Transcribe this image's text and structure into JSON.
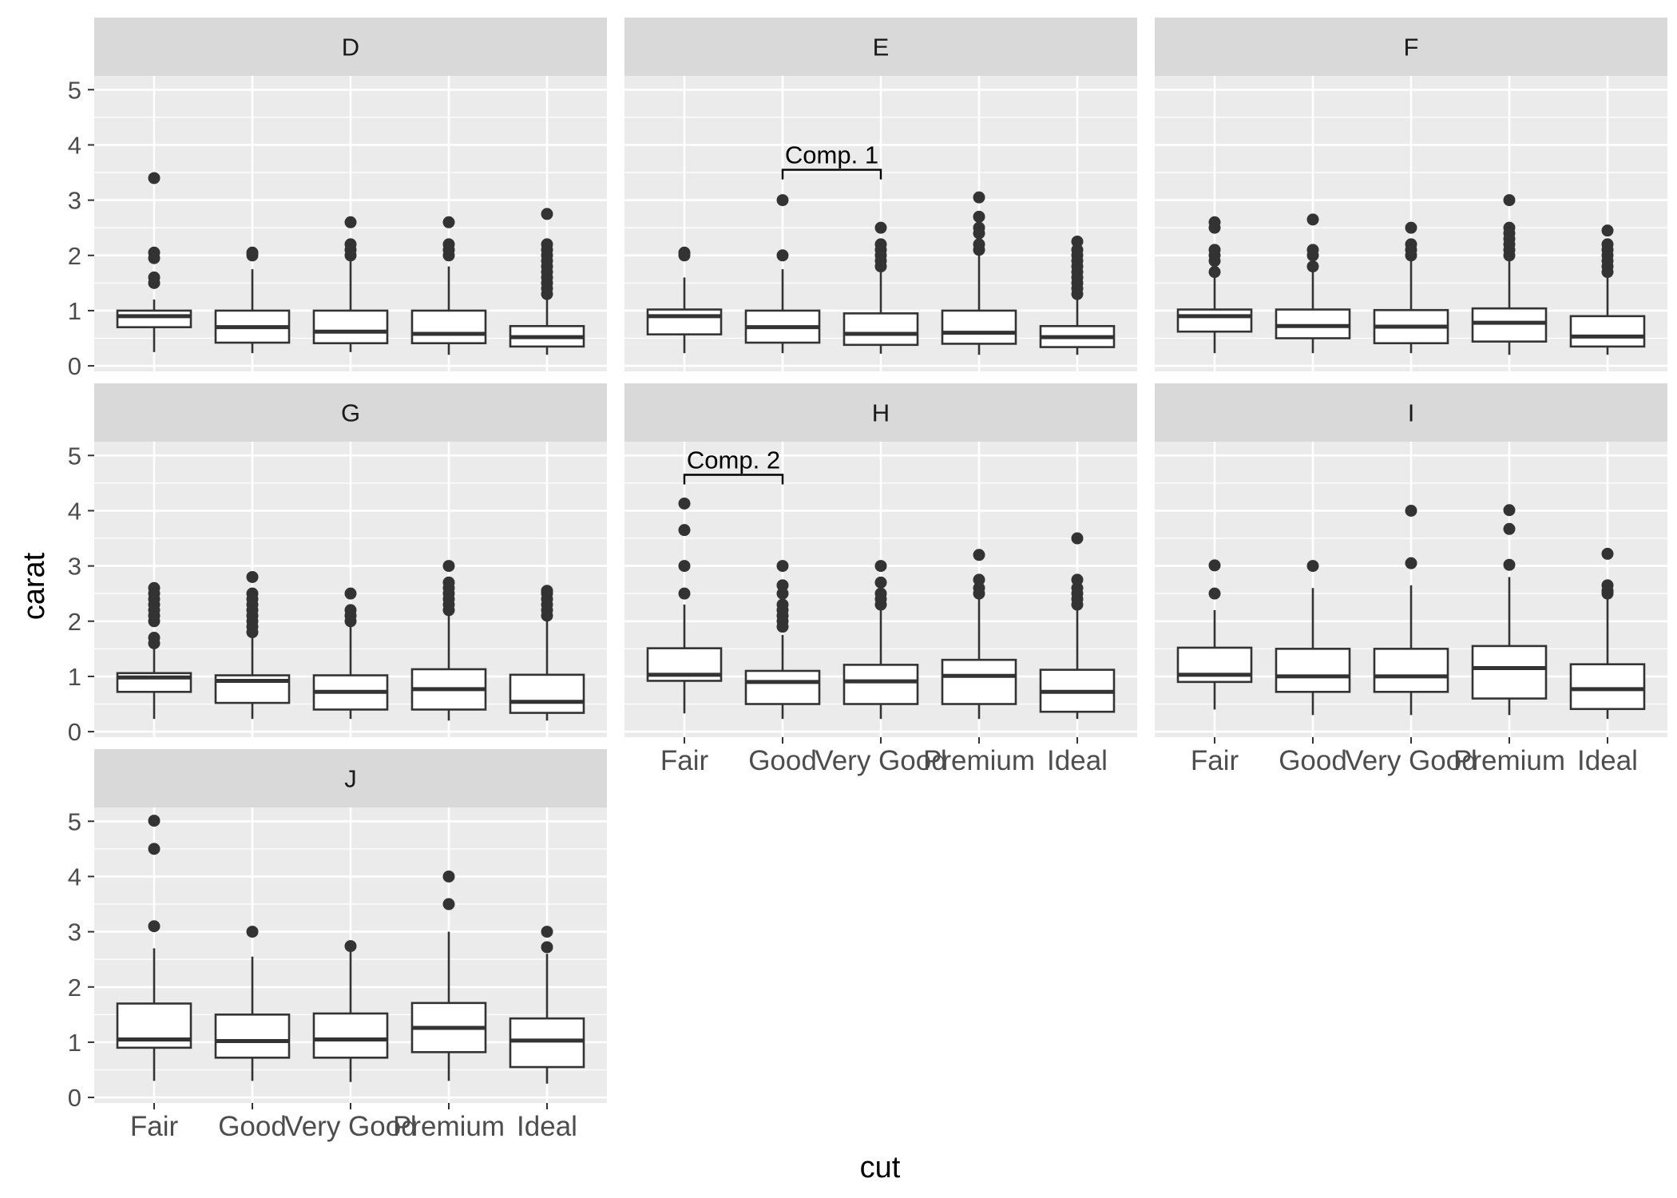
{
  "chart_data": {
    "type": "boxplot",
    "xlabel": "cut",
    "ylabel": "carat",
    "categories": [
      "Fair",
      "Good",
      "Very Good",
      "Premium",
      "Ideal"
    ],
    "y_ticks": [
      0,
      1,
      2,
      3,
      4,
      5
    ],
    "ylim": [
      -0.1,
      5.25
    ],
    "grid": true,
    "colors": {
      "panel": "#ebebeb",
      "strip": "#d9d9d9",
      "grid": "#ffffff",
      "ink": "#333333"
    },
    "facet_layout": "wrap, 3 columns",
    "panels": [
      {
        "label": "D",
        "boxes": [
          {
            "cut": "Fair",
            "whisker_low": 0.25,
            "q1": 0.7,
            "median": 0.9,
            "q3": 1.0,
            "whisker_high": 1.2,
            "outliers": [
              3.4,
              2.05,
              1.95,
              1.6,
              1.5
            ]
          },
          {
            "cut": "Good",
            "whisker_low": 0.23,
            "q1": 0.42,
            "median": 0.7,
            "q3": 1.0,
            "whisker_high": 1.75,
            "outliers": [
              2.05,
              2.0
            ]
          },
          {
            "cut": "Very Good",
            "whisker_low": 0.25,
            "q1": 0.41,
            "median": 0.62,
            "q3": 1.0,
            "whisker_high": 1.9,
            "outliers": [
              2.6,
              2.2,
              2.1,
              2.0
            ]
          },
          {
            "cut": "Premium",
            "whisker_low": 0.2,
            "q1": 0.41,
            "median": 0.58,
            "q3": 1.0,
            "whisker_high": 1.8,
            "outliers": [
              2.6,
              2.2,
              2.1,
              2.0
            ]
          },
          {
            "cut": "Ideal",
            "whisker_low": 0.2,
            "q1": 0.35,
            "median": 0.52,
            "q3": 0.72,
            "whisker_high": 1.2,
            "outliers": [
              2.75,
              2.2,
              2.1,
              2.0,
              1.9,
              1.8,
              1.7,
              1.6,
              1.5,
              1.4,
              1.3
            ]
          }
        ]
      },
      {
        "label": "E",
        "annotation": {
          "text": "Comp. 1",
          "from": "Good",
          "to": "Very Good",
          "y": 3.55
        },
        "boxes": [
          {
            "cut": "Fair",
            "whisker_low": 0.23,
            "q1": 0.57,
            "median": 0.9,
            "q3": 1.02,
            "whisker_high": 1.6,
            "outliers": [
              2.05,
              2.0
            ]
          },
          {
            "cut": "Good",
            "whisker_low": 0.23,
            "q1": 0.42,
            "median": 0.7,
            "q3": 1.0,
            "whisker_high": 1.75,
            "outliers": [
              3.0,
              2.0
            ]
          },
          {
            "cut": "Very Good",
            "whisker_low": 0.22,
            "q1": 0.38,
            "median": 0.58,
            "q3": 0.95,
            "whisker_high": 1.75,
            "outliers": [
              2.5,
              2.2,
              2.1,
              2.0,
              1.9,
              1.8
            ]
          },
          {
            "cut": "Premium",
            "whisker_low": 0.2,
            "q1": 0.4,
            "median": 0.6,
            "q3": 1.0,
            "whisker_high": 2.0,
            "outliers": [
              3.05,
              2.7,
              2.5,
              2.4,
              2.2,
              2.1
            ]
          },
          {
            "cut": "Ideal",
            "whisker_low": 0.2,
            "q1": 0.34,
            "median": 0.52,
            "q3": 0.72,
            "whisker_high": 1.2,
            "outliers": [
              2.25,
              2.1,
              2.0,
              1.9,
              1.8,
              1.7,
              1.6,
              1.5,
              1.4,
              1.3
            ]
          }
        ]
      },
      {
        "label": "F",
        "boxes": [
          {
            "cut": "Fair",
            "whisker_low": 0.23,
            "q1": 0.62,
            "median": 0.9,
            "q3": 1.02,
            "whisker_high": 1.6,
            "outliers": [
              2.6,
              2.5,
              2.1,
              2.0,
              1.9,
              1.7
            ]
          },
          {
            "cut": "Good",
            "whisker_low": 0.23,
            "q1": 0.5,
            "median": 0.72,
            "q3": 1.02,
            "whisker_high": 1.75,
            "outliers": [
              2.65,
              2.1,
              2.0,
              1.8
            ]
          },
          {
            "cut": "Very Good",
            "whisker_low": 0.23,
            "q1": 0.41,
            "median": 0.71,
            "q3": 1.01,
            "whisker_high": 1.9,
            "outliers": [
              2.5,
              2.2,
              2.1,
              2.0
            ]
          },
          {
            "cut": "Premium",
            "whisker_low": 0.2,
            "q1": 0.44,
            "median": 0.78,
            "q3": 1.04,
            "whisker_high": 1.9,
            "outliers": [
              3.0,
              2.5,
              2.4,
              2.3,
              2.2,
              2.1,
              2.0
            ]
          },
          {
            "cut": "Ideal",
            "whisker_low": 0.2,
            "q1": 0.35,
            "median": 0.53,
            "q3": 0.9,
            "whisker_high": 1.65,
            "outliers": [
              2.45,
              2.2,
              2.1,
              2.0,
              1.9,
              1.8,
              1.7
            ]
          }
        ]
      },
      {
        "label": "G",
        "boxes": [
          {
            "cut": "Fair",
            "whisker_low": 0.23,
            "q1": 0.72,
            "median": 0.98,
            "q3": 1.06,
            "whisker_high": 1.55,
            "outliers": [
              2.6,
              2.5,
              2.4,
              2.3,
              2.2,
              2.1,
              2.0,
              1.7,
              1.6
            ]
          },
          {
            "cut": "Good",
            "whisker_low": 0.23,
            "q1": 0.52,
            "median": 0.92,
            "q3": 1.02,
            "whisker_high": 1.75,
            "outliers": [
              2.8,
              2.5,
              2.4,
              2.3,
              2.2,
              2.1,
              2.0,
              1.9,
              1.8
            ]
          },
          {
            "cut": "Very Good",
            "whisker_low": 0.23,
            "q1": 0.4,
            "median": 0.72,
            "q3": 1.02,
            "whisker_high": 1.9,
            "outliers": [
              2.5,
              2.2,
              2.1,
              2.0
            ]
          },
          {
            "cut": "Premium",
            "whisker_low": 0.2,
            "q1": 0.4,
            "median": 0.77,
            "q3": 1.13,
            "whisker_high": 2.1,
            "outliers": [
              3.0,
              2.7,
              2.6,
              2.5,
              2.4,
              2.3,
              2.2
            ]
          },
          {
            "cut": "Ideal",
            "whisker_low": 0.2,
            "q1": 0.34,
            "median": 0.54,
            "q3": 1.03,
            "whisker_high": 2.0,
            "outliers": [
              2.55,
              2.5,
              2.4,
              2.3,
              2.2,
              2.1
            ]
          }
        ]
      },
      {
        "label": "H",
        "annotation": {
          "text": "Comp. 2",
          "from": "Fair",
          "to": "Good",
          "y": 4.65
        },
        "boxes": [
          {
            "cut": "Fair",
            "whisker_low": 0.33,
            "q1": 0.92,
            "median": 1.03,
            "q3": 1.51,
            "whisker_high": 2.3,
            "outliers": [
              4.13,
              3.65,
              3.0,
              2.5
            ]
          },
          {
            "cut": "Good",
            "whisker_low": 0.23,
            "q1": 0.5,
            "median": 0.9,
            "q3": 1.1,
            "whisker_high": 1.75,
            "outliers": [
              3.0,
              2.65,
              2.5,
              2.3,
              2.2,
              2.1,
              2.0,
              1.9
            ]
          },
          {
            "cut": "Very Good",
            "whisker_low": 0.23,
            "q1": 0.5,
            "median": 0.91,
            "q3": 1.21,
            "whisker_high": 2.25,
            "outliers": [
              3.0,
              2.7,
              2.5,
              2.4,
              2.3
            ]
          },
          {
            "cut": "Premium",
            "whisker_low": 0.23,
            "q1": 0.5,
            "median": 1.01,
            "q3": 1.3,
            "whisker_high": 2.4,
            "outliers": [
              3.2,
              2.75,
              2.6,
              2.5
            ]
          },
          {
            "cut": "Ideal",
            "whisker_low": 0.23,
            "q1": 0.36,
            "median": 0.72,
            "q3": 1.12,
            "whisker_high": 2.25,
            "outliers": [
              3.5,
              2.75,
              2.6,
              2.5,
              2.4,
              2.3
            ]
          }
        ]
      },
      {
        "label": "I",
        "boxes": [
          {
            "cut": "Fair",
            "whisker_low": 0.4,
            "q1": 0.9,
            "median": 1.03,
            "q3": 1.52,
            "whisker_high": 2.2,
            "outliers": [
              3.01,
              2.5
            ]
          },
          {
            "cut": "Good",
            "whisker_low": 0.3,
            "q1": 0.72,
            "median": 1.0,
            "q3": 1.5,
            "whisker_high": 2.6,
            "outliers": [
              3.0
            ]
          },
          {
            "cut": "Very Good",
            "whisker_low": 0.3,
            "q1": 0.72,
            "median": 1.0,
            "q3": 1.5,
            "whisker_high": 2.65,
            "outliers": [
              4.0,
              3.05
            ]
          },
          {
            "cut": "Premium",
            "whisker_low": 0.3,
            "q1": 0.6,
            "median": 1.15,
            "q3": 1.55,
            "whisker_high": 2.8,
            "outliers": [
              4.01,
              3.67,
              3.02
            ]
          },
          {
            "cut": "Ideal",
            "whisker_low": 0.23,
            "q1": 0.41,
            "median": 0.77,
            "q3": 1.22,
            "whisker_high": 2.4,
            "outliers": [
              3.22,
              2.65,
              2.55,
              2.5
            ]
          }
        ]
      },
      {
        "label": "J",
        "boxes": [
          {
            "cut": "Fair",
            "whisker_low": 0.3,
            "q1": 0.9,
            "median": 1.05,
            "q3": 1.7,
            "whisker_high": 2.7,
            "outliers": [
              5.01,
              4.5,
              3.1
            ]
          },
          {
            "cut": "Good",
            "whisker_low": 0.3,
            "q1": 0.72,
            "median": 1.02,
            "q3": 1.5,
            "whisker_high": 2.55,
            "outliers": [
              3.0
            ]
          },
          {
            "cut": "Very Good",
            "whisker_low": 0.28,
            "q1": 0.72,
            "median": 1.05,
            "q3": 1.52,
            "whisker_high": 2.7,
            "outliers": [
              2.74
            ]
          },
          {
            "cut": "Premium",
            "whisker_low": 0.3,
            "q1": 0.82,
            "median": 1.26,
            "q3": 1.71,
            "whisker_high": 3.0,
            "outliers": [
              4.0,
              3.5
            ]
          },
          {
            "cut": "Ideal",
            "whisker_low": 0.25,
            "q1": 0.55,
            "median": 1.03,
            "q3": 1.43,
            "whisker_high": 2.6,
            "outliers": [
              3.0,
              2.72
            ]
          }
        ]
      }
    ]
  }
}
